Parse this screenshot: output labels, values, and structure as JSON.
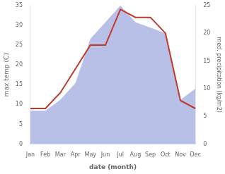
{
  "chart_data": {
    "type": "line",
    "categories": [
      "Jan",
      "Feb",
      "Mar",
      "Apr",
      "May",
      "Jun",
      "Jul",
      "Aug",
      "Sep",
      "Oct",
      "Nov",
      "Dec"
    ],
    "xlabel": "date (month)",
    "ylabel": "max temp (C)",
    "y2label": "med. precipitation (kg/m2)",
    "series": [
      {
        "type": "area",
        "color": "#b8c0e8",
        "axis": "y2",
        "values": [
          6,
          6,
          8,
          11,
          19,
          22,
          25,
          22,
          21,
          20,
          8,
          10
        ]
      },
      {
        "type": "line",
        "color": "#c0392b",
        "values": [
          9,
          9,
          13,
          19,
          25,
          25,
          34,
          32,
          32,
          28,
          11,
          9
        ]
      }
    ],
    "ylim": [
      0,
      35
    ],
    "yticks": [
      0,
      5,
      10,
      15,
      20,
      25,
      30,
      35
    ],
    "y2lim": [
      0,
      25
    ],
    "y2ticks": [
      0,
      5,
      10,
      15,
      20,
      25
    ],
    "grid": false
  }
}
